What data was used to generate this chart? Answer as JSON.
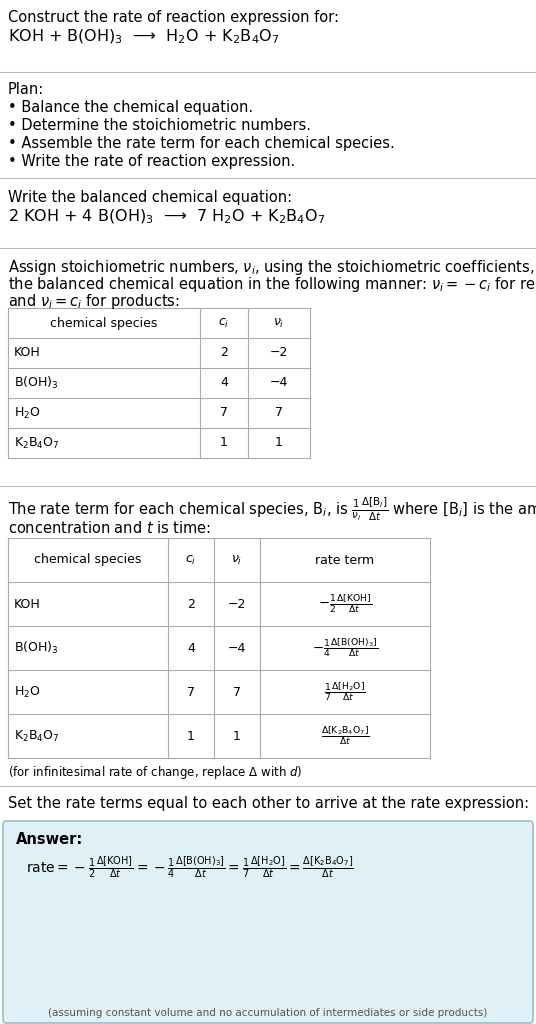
{
  "bg_color": "#ffffff",
  "answer_bg_color": "#dff0f7",
  "answer_border_color": "#9bbccc",
  "title_text": "Construct the rate of reaction expression for:",
  "reaction_unbalanced": "KOH + B(OH)$_3$  ⟶  H$_2$O + K$_2$B$_4$O$_7$",
  "plan_header": "Plan:",
  "plan_items": [
    "• Balance the chemical equation.",
    "• Determine the stoichiometric numbers.",
    "• Assemble the rate term for each chemical species.",
    "• Write the rate of reaction expression."
  ],
  "balanced_header": "Write the balanced chemical equation:",
  "reaction_balanced": "2 KOH + 4 B(OH)$_3$  ⟶  7 H$_2$O + K$_2$B$_4$O$_7$",
  "stoich_header_line1": "Assign stoichiometric numbers, $\\nu_i$, using the stoichiometric coefficients, $c_i$, from",
  "stoich_header_line2": "the balanced chemical equation in the following manner: $\\nu_i = -c_i$ for reactants",
  "stoich_header_line3": "and $\\nu_i = c_i$ for products:",
  "table1_headers": [
    "chemical species",
    "$c_i$",
    "$\\nu_i$"
  ],
  "table1_rows": [
    [
      "KOH",
      "2",
      "−2"
    ],
    [
      "B(OH)$_3$",
      "4",
      "−4"
    ],
    [
      "H$_2$O",
      "7",
      "7"
    ],
    [
      "K$_2$B$_4$O$_7$",
      "1",
      "1"
    ]
  ],
  "rate_text_line1": "The rate term for each chemical species, B$_i$, is $\\frac{1}{\\nu_i}\\frac{\\Delta[\\mathrm{B}_i]}{\\Delta t}$ where [B$_i$] is the amount",
  "rate_text_line2": "concentration and $t$ is time:",
  "table2_headers": [
    "chemical species",
    "$c_i$",
    "$\\nu_i$",
    "rate term"
  ],
  "table2_rows": [
    [
      "KOH",
      "2",
      "−2",
      "$-\\frac{1}{2}\\frac{\\Delta[\\mathrm{KOH}]}{\\Delta t}$"
    ],
    [
      "B(OH)$_3$",
      "4",
      "−4",
      "$-\\frac{1}{4}\\frac{\\Delta[\\mathrm{B(OH)_3}]}{\\Delta t}$"
    ],
    [
      "H$_2$O",
      "7",
      "7",
      "$\\frac{1}{7}\\frac{\\Delta[\\mathrm{H_2O}]}{\\Delta t}$"
    ],
    [
      "K$_2$B$_4$O$_7$",
      "1",
      "1",
      "$\\frac{\\Delta[\\mathrm{K_2B_4O_7}]}{\\Delta t}$"
    ]
  ],
  "infinitesimal_note": "(for infinitesimal rate of change, replace Δ with $d$)",
  "set_rate_text": "Set the rate terms equal to each other to arrive at the rate expression:",
  "answer_label": "Answer:",
  "answer_formula": "$\\mathrm{rate} = -\\frac{1}{2}\\frac{\\Delta[\\mathrm{KOH}]}{\\Delta t} = -\\frac{1}{4}\\frac{\\Delta[\\mathrm{B(OH)_3}]}{\\Delta t} = \\frac{1}{7}\\frac{\\Delta[\\mathrm{H_2O}]}{\\Delta t} = \\frac{\\Delta[\\mathrm{K_2B_4O_7}]}{\\Delta t}$",
  "answer_note": "(assuming constant volume and no accumulation of intermediates or side products)",
  "fs": 10.5,
  "fs_small": 9.0,
  "fs_table": 9.5,
  "line_color": "#bbbbbb",
  "table_line_color": "#aaaaaa"
}
